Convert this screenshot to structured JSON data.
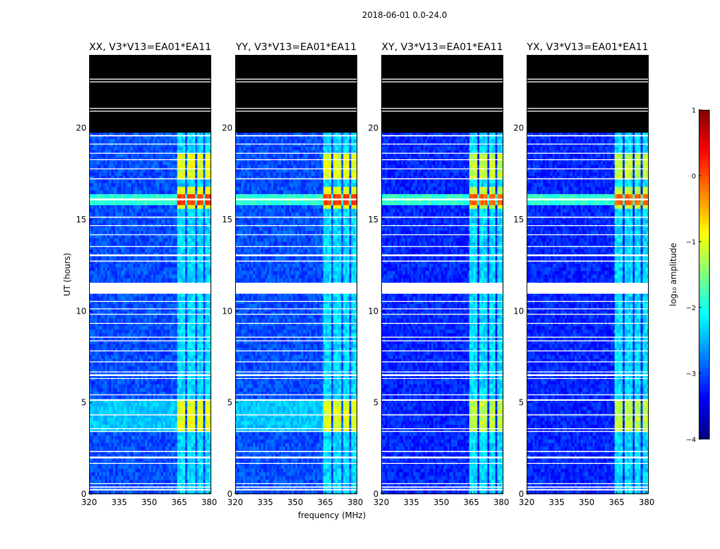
{
  "figure": {
    "suptitle": "2018-06-01 0.0-24.0",
    "xlabel": "frequency (MHz)",
    "ylabel": "UT (hours)"
  },
  "chart_data": {
    "type": "heatmap",
    "xlim": [
      320,
      381
    ],
    "ylim": [
      0,
      24
    ],
    "x_ticks": [
      320,
      335,
      350,
      365,
      380
    ],
    "y_ticks": [
      0,
      5,
      10,
      15,
      20
    ],
    "rfi_band_mhz": [
      364,
      380
    ],
    "rfi_channels_mhz": [
      [
        364.0,
        368.0
      ],
      [
        369.0,
        372.8
      ],
      [
        373.6,
        376.8
      ],
      [
        377.6,
        381.0
      ]
    ],
    "blank_ut_hours": [
      [
        0.2,
        0.28
      ],
      [
        0.35,
        0.42
      ],
      [
        0.55,
        0.6
      ],
      [
        1.65,
        1.7
      ],
      [
        1.95,
        2.05
      ],
      [
        2.3,
        2.36
      ],
      [
        3.4,
        3.45
      ],
      [
        3.55,
        3.6
      ],
      [
        4.3,
        4.36
      ],
      [
        5.1,
        5.18
      ],
      [
        5.4,
        5.45
      ],
      [
        6.3,
        6.34
      ],
      [
        6.45,
        6.55
      ],
      [
        6.65,
        6.7
      ],
      [
        7.2,
        7.25
      ],
      [
        7.8,
        7.85
      ],
      [
        8.35,
        8.4
      ],
      [
        8.55,
        8.6
      ],
      [
        9.3,
        9.35
      ],
      [
        9.8,
        9.85
      ],
      [
        10.1,
        10.15
      ],
      [
        10.5,
        10.55
      ],
      [
        10.95,
        11.55
      ],
      [
        12.7,
        12.76
      ],
      [
        13.0,
        13.1
      ],
      [
        13.5,
        13.55
      ],
      [
        14.15,
        14.2
      ],
      [
        14.65,
        14.7
      ],
      [
        15.1,
        15.16
      ],
      [
        16.05,
        16.15
      ],
      [
        17.2,
        17.26
      ],
      [
        17.75,
        17.8
      ],
      [
        18.25,
        18.3
      ],
      [
        18.6,
        18.65
      ],
      [
        19.1,
        19.15
      ],
      [
        19.55,
        19.62
      ]
    ],
    "no_data_ut_hours": [
      19.75,
      24
    ],
    "high_activity_ut_hours": [
      [
        3.4,
        5.3
      ],
      [
        15.6,
        16.7
      ],
      [
        17.2,
        18.5
      ]
    ],
    "broadband_ut_hours": [
      15.75,
      16.35
    ],
    "panels": [
      {
        "title": "XX, V3*V13=EA01*EA11",
        "broadband": true,
        "baseline_log_amp": -3.0,
        "channel_peak_log_amp": -1.0,
        "burst_peak_log_amp": 0.1
      },
      {
        "title": "YY, V3*V13=EA01*EA11",
        "broadband": true,
        "baseline_log_amp": -3.0,
        "channel_peak_log_amp": -1.0,
        "burst_peak_log_amp": 0.1
      },
      {
        "title": "XY, V3*V13=EA01*EA11",
        "broadband": true,
        "baseline_log_amp": -3.2,
        "channel_peak_log_amp": -1.2,
        "burst_peak_log_amp": -0.1
      },
      {
        "title": "YX, V3*V13=EA01*EA11",
        "broadband": true,
        "baseline_log_amp": -3.2,
        "channel_peak_log_amp": -1.2,
        "burst_peak_log_amp": -0.1
      }
    ],
    "colorbar": {
      "label": "log₁₀ amplitude",
      "range": [
        -4,
        1
      ],
      "ticks": [
        "1",
        "0",
        "−1",
        "−2",
        "−3",
        "−4"
      ],
      "colormap": "jet"
    }
  }
}
